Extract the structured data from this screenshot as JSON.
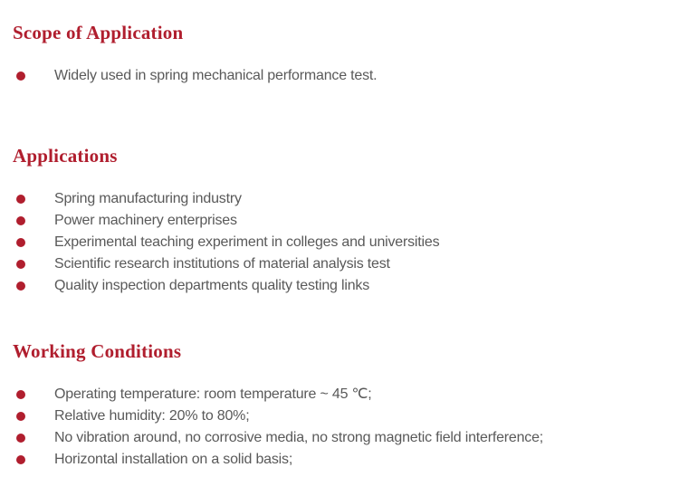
{
  "page": {
    "background": "#ffffff",
    "accent_color": "#b01e2e",
    "body_text_color": "#595959",
    "bullet_icon": "filled-circle"
  },
  "sections": [
    {
      "title": "Scope of Application",
      "items": [
        "Widely used in spring mechanical performance test."
      ]
    },
    {
      "title": "Applications",
      "items": [
        "Spring manufacturing industry",
        "Power machinery enterprises",
        "Experimental teaching experiment in colleges and universities",
        "Scientific research institutions of material analysis test",
        "Quality inspection departments quality testing links"
      ]
    },
    {
      "title": "Working Conditions",
      "items": [
        "Operating temperature: room temperature ~ 45 ℃;",
        "Relative humidity: 20% to 80%;",
        "No vibration around, no corrosive media, no strong magnetic field interference;",
        "Horizontal installation on a solid basis;"
      ]
    }
  ]
}
